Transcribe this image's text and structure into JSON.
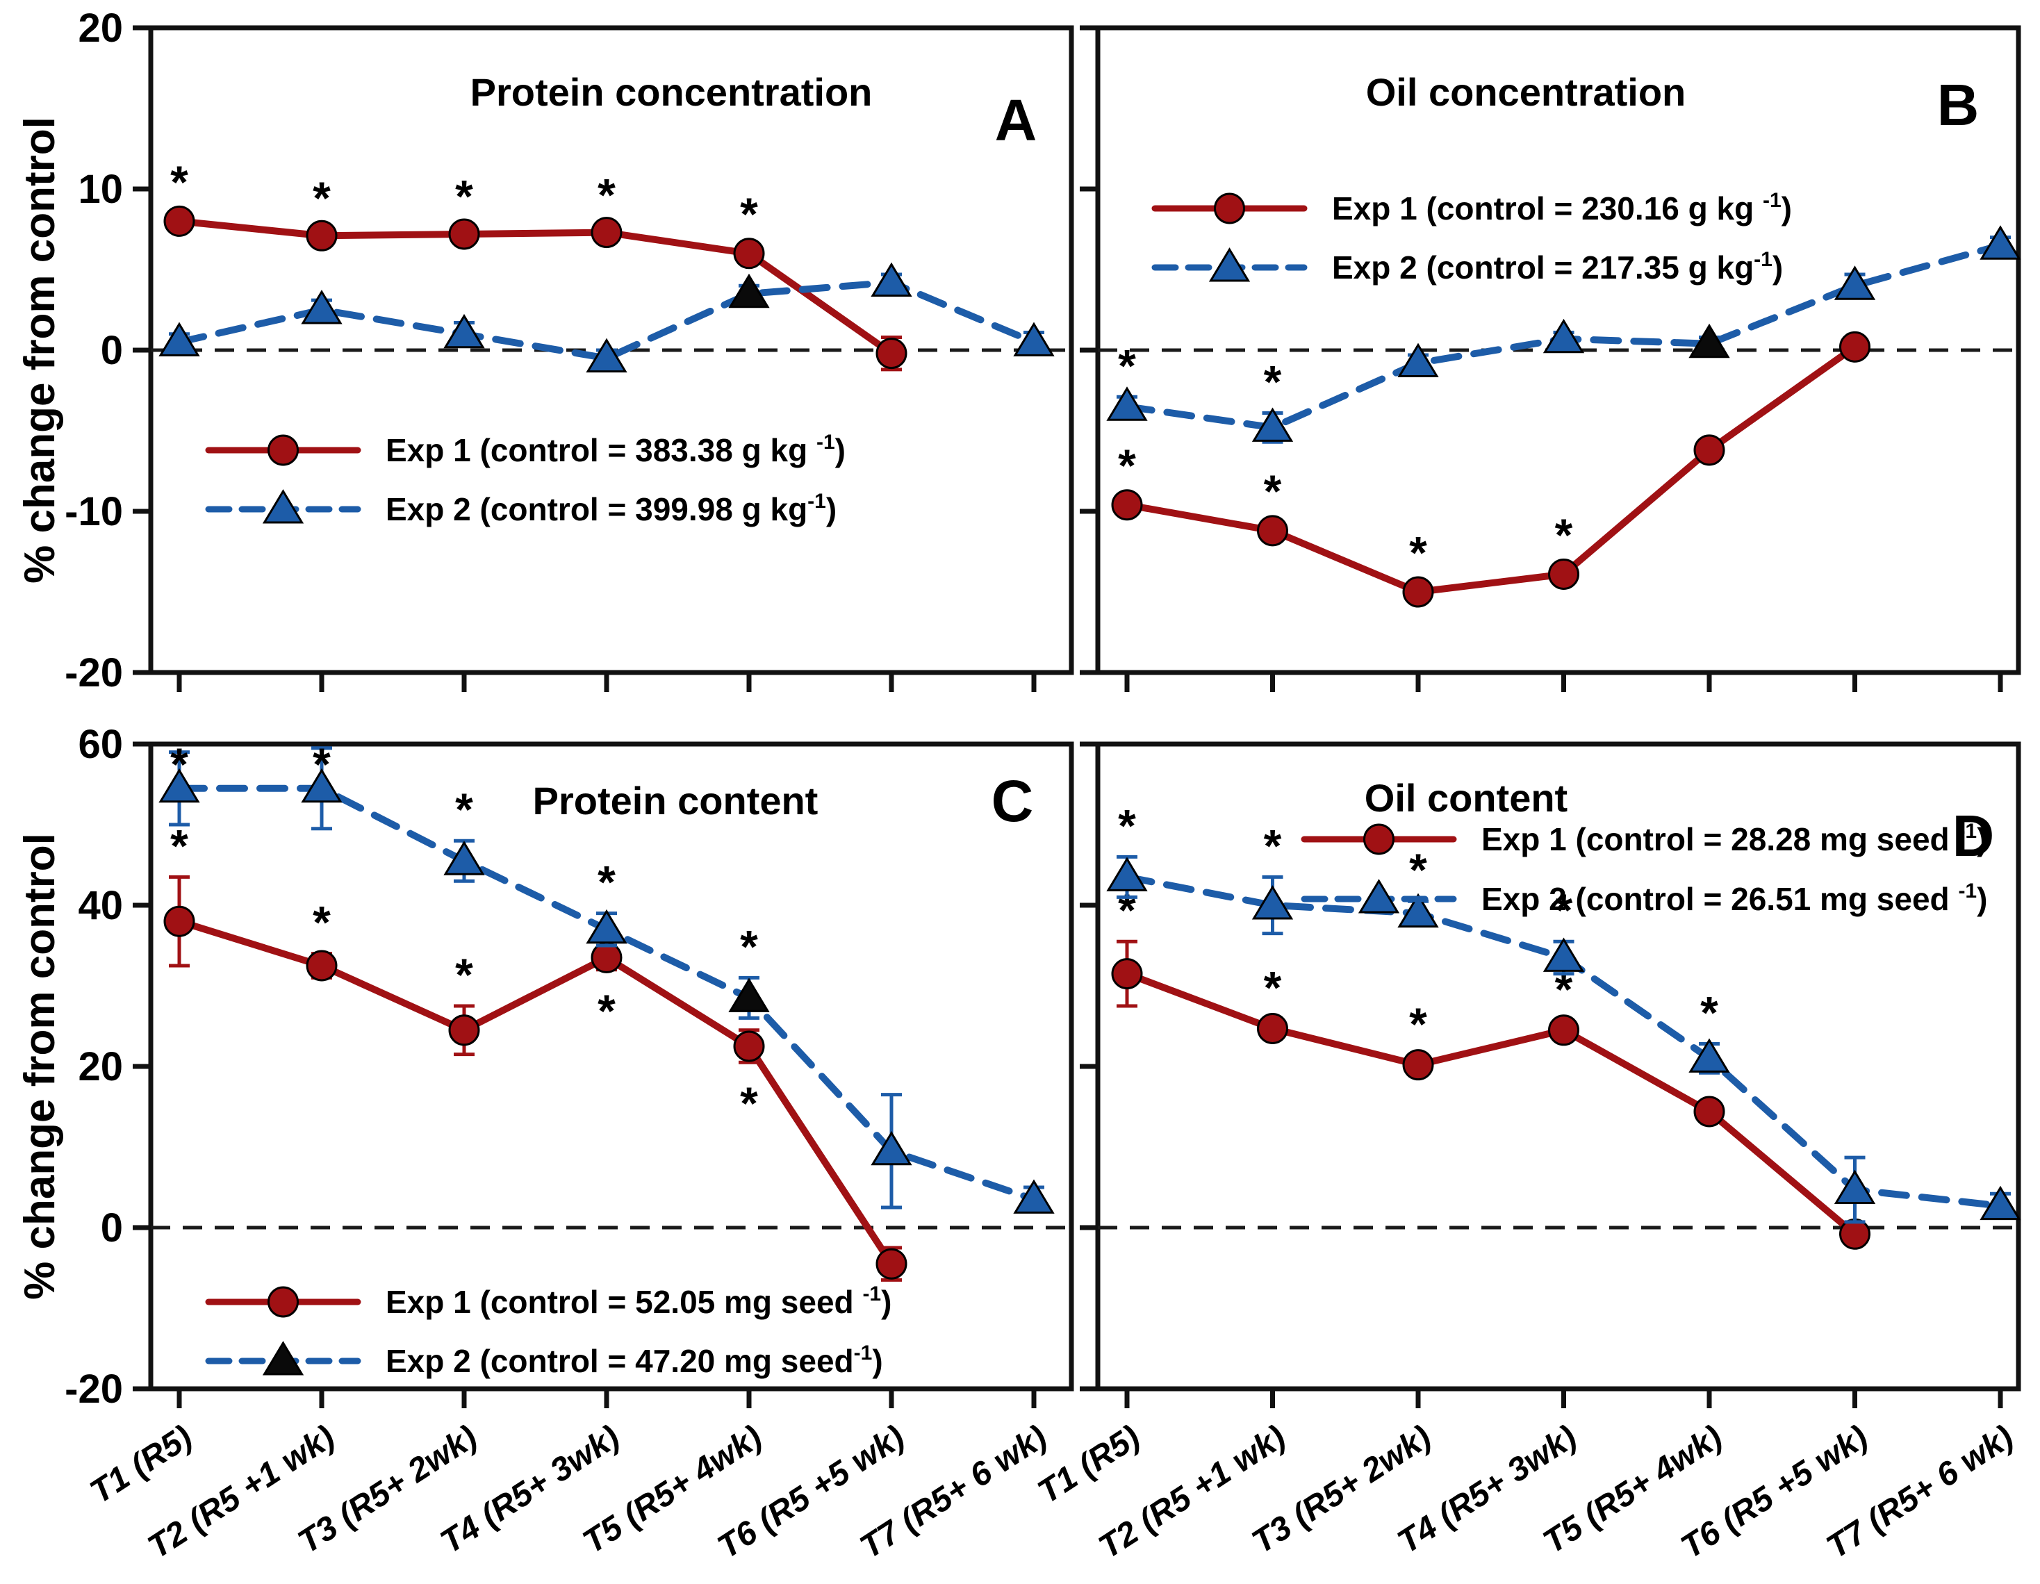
{
  "figure": {
    "ylabel_row1": "% change from control",
    "ylabel_row2": "% change from control",
    "categories": [
      "T1 (R5)",
      "T2 (R5 +1 wk)",
      "T3 (R5+ 2wk)",
      "T4 (R5+ 3wk)",
      "T5 (R5+ 4wk)",
      "T6 (R5 +5 wk)",
      "T7 (R5+ 6 wk)"
    ]
  },
  "colors": {
    "exp1": "#A01114",
    "exp2": "#1D5CA8",
    "black_marker": "#0a0a0a",
    "zero_line": "#1a1a1a",
    "frame": "#111111"
  },
  "chart_data": [
    {
      "type": "line",
      "panel_label": "A",
      "title": "Protein concentration",
      "ylabel": "% change from control",
      "ylim": [
        -20,
        20
      ],
      "yticks": [
        20,
        10,
        0,
        -10,
        -20
      ],
      "grid": false,
      "zero_reference_line": true,
      "legend_position": "inside-middle-left",
      "categories": [
        "T1 (R5)",
        "T2 (R5 +1 wk)",
        "T3 (R5+ 2wk)",
        "T4 (R5+ 3wk)",
        "T5 (R5+ 4wk)",
        "T6 (R5 +5 wk)",
        "T7 (R5+ 6 wk)"
      ],
      "series": [
        {
          "name": "Exp 1 (control = 383.38 g kg⁻¹)",
          "legend_main": "Exp 1 (control = 383.38 g kg ",
          "legend_sup": "-1",
          "legend_close": ")",
          "marker": "circle",
          "values": [
            8.0,
            7.1,
            7.2,
            7.3,
            6.0,
            -0.2,
            null
          ],
          "errors": [
            0.5,
            0.4,
            0.4,
            0.4,
            0.5,
            1.0,
            null
          ],
          "sig": [
            true,
            true,
            true,
            true,
            true,
            false,
            false
          ],
          "sig_below": [
            false,
            false,
            false,
            false,
            false,
            false,
            false
          ],
          "black_marker_indices": []
        },
        {
          "name": "Exp 2 (control = 399.98 g kg⁻¹)",
          "legend_main": "Exp 2 (control = 399.98 g kg",
          "legend_sup": "-1",
          "legend_close": ")",
          "marker": "triangle",
          "values": [
            0.5,
            2.5,
            1.0,
            -0.5,
            3.5,
            4.2,
            0.5
          ],
          "errors": [
            0.5,
            0.6,
            0.7,
            0.5,
            0.5,
            0.5,
            0.6
          ],
          "sig": [
            false,
            false,
            false,
            false,
            false,
            false,
            false
          ],
          "sig_below": [
            false,
            false,
            false,
            false,
            false,
            false,
            false
          ],
          "black_marker_indices": [
            4
          ]
        }
      ]
    },
    {
      "type": "line",
      "panel_label": "B",
      "title": "Oil concentration",
      "ylabel": "% change from control",
      "ylim": [
        -20,
        20
      ],
      "yticks": [
        20,
        10,
        0,
        -10,
        -20
      ],
      "grid": false,
      "zero_reference_line": true,
      "legend_position": "inside-top-left",
      "categories": [
        "T1 (R5)",
        "T2 (R5 +1 wk)",
        "T3 (R5+ 2wk)",
        "T4 (R5+ 3wk)",
        "T5 (R5+ 4wk)",
        "T6 (R5 +5 wk)",
        "T7 (R5+ 6 wk)"
      ],
      "series": [
        {
          "name": "Exp 1 (control = 230.16 g kg⁻¹)",
          "legend_main": "Exp 1 (control = 230.16 g kg ",
          "legend_sup": "-1",
          "legend_close": ")",
          "marker": "circle",
          "values": [
            -9.6,
            -11.2,
            -15.0,
            -13.9,
            -6.2,
            0.2,
            null
          ],
          "errors": [
            0.5,
            0.5,
            0.5,
            0.5,
            0.5,
            0.4,
            null
          ],
          "sig": [
            true,
            true,
            true,
            true,
            false,
            false,
            false
          ],
          "sig_below": [
            false,
            false,
            false,
            false,
            false,
            false,
            false
          ],
          "black_marker_indices": []
        },
        {
          "name": "Exp 2 (control = 217.35 g kg⁻¹)",
          "legend_main": "Exp 2 (control = 217.35 g kg",
          "legend_sup": "-1",
          "legend_close": ")",
          "marker": "triangle",
          "values": [
            -3.5,
            -4.8,
            -0.8,
            0.7,
            0.4,
            4.0,
            6.5
          ],
          "errors": [
            0.6,
            0.9,
            0.5,
            0.4,
            0.4,
            0.7,
            0.5
          ],
          "sig": [
            true,
            true,
            false,
            false,
            false,
            false,
            false
          ],
          "sig_below": [
            false,
            false,
            false,
            false,
            false,
            false,
            false
          ],
          "black_marker_indices": [
            4
          ]
        }
      ]
    },
    {
      "type": "line",
      "panel_label": "C",
      "title": "Protein content",
      "ylabel": "% change from control",
      "ylim": [
        -20,
        60
      ],
      "yticks": [
        60,
        40,
        20,
        0,
        -20
      ],
      "grid": false,
      "zero_reference_line": true,
      "legend_position": "inside-bottom-left",
      "categories": [
        "T1 (R5)",
        "T2 (R5 +1 wk)",
        "T3 (R5+ 2wk)",
        "T4 (R5+ 3wk)",
        "T5 (R5+ 4wk)",
        "T6 (R5 +5 wk)",
        "T7 (R5+ 6 wk)"
      ],
      "series": [
        {
          "name": "Exp 1 (control = 52.05 mg seed⁻¹)",
          "legend_main": "Exp 1 (control = 52.05 mg seed ",
          "legend_sup": "-1",
          "legend_close": ")",
          "marker": "circle",
          "values": [
            38.0,
            32.5,
            24.5,
            33.5,
            22.5,
            -4.5,
            null
          ],
          "errors": [
            5.5,
            1.5,
            3.0,
            1.5,
            2.0,
            2.0,
            null
          ],
          "sig": [
            true,
            true,
            true,
            true,
            true,
            false,
            false
          ],
          "sig_below": [
            false,
            false,
            false,
            true,
            true,
            false,
            false
          ],
          "black_marker_indices": []
        },
        {
          "name": "Exp 2 (control = 47.20 mg seed⁻¹)",
          "legend_main": "Exp 2 (control = 47.20 mg seed",
          "legend_sup": "-1",
          "legend_close": ")",
          "marker": "triangle",
          "values": [
            54.5,
            54.5,
            45.5,
            37.0,
            28.5,
            9.5,
            3.5
          ],
          "errors": [
            4.5,
            5.0,
            2.5,
            2.0,
            2.5,
            7.0,
            1.5
          ],
          "sig": [
            true,
            true,
            true,
            true,
            true,
            false,
            false
          ],
          "sig_below": [
            false,
            false,
            false,
            false,
            false,
            false,
            false
          ],
          "black_marker_indices": [
            4
          ],
          "legend_marker_black": true
        }
      ]
    },
    {
      "type": "line",
      "panel_label": "D",
      "title": "Oil content",
      "ylabel": "% change from control",
      "ylim": [
        -20,
        60
      ],
      "yticks": [
        60,
        40,
        20,
        0,
        -20
      ],
      "grid": false,
      "zero_reference_line": true,
      "legend_position": "inside-top-right",
      "categories": [
        "T1 (R5)",
        "T2 (R5 +1 wk)",
        "T3 (R5+ 2wk)",
        "T4 (R5+ 3wk)",
        "T5 (R5+ 4wk)",
        "T6 (R5 +5 wk)",
        "T7 (R5+ 6 wk)"
      ],
      "series": [
        {
          "name": "Exp 1 (control = 28.28 mg seed⁻¹)",
          "legend_main": "Exp 1 (control = 28.28 mg seed ",
          "legend_sup": "-1",
          "legend_close": ")",
          "marker": "circle",
          "values": [
            31.5,
            24.7,
            20.2,
            24.5,
            14.4,
            -0.8,
            null
          ],
          "errors": [
            4.0,
            1.2,
            1.2,
            1.2,
            1.2,
            0.8,
            null
          ],
          "sig": [
            true,
            true,
            true,
            true,
            true,
            false,
            false
          ],
          "sig_below": [
            false,
            false,
            false,
            false,
            false,
            false,
            false
          ],
          "black_marker_indices": []
        },
        {
          "name": "Exp 2 (control = 26.51 mg seed⁻¹)",
          "legend_main": "Exp 2 (control = 26.51 mg seed ",
          "legend_sup": "-1",
          "legend_close": ")",
          "marker": "triangle",
          "values": [
            43.5,
            40.0,
            39.0,
            33.5,
            21.0,
            4.7,
            2.7
          ],
          "errors": [
            2.5,
            3.5,
            1.5,
            2.0,
            1.8,
            4.0,
            1.5
          ],
          "sig": [
            true,
            true,
            true,
            true,
            true,
            false,
            false
          ],
          "sig_below": [
            false,
            false,
            false,
            false,
            false,
            false,
            false
          ],
          "black_marker_indices": []
        }
      ]
    }
  ]
}
